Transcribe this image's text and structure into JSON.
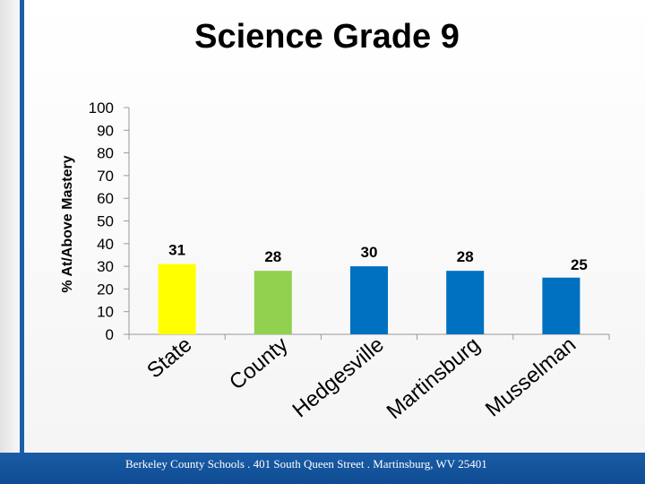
{
  "chart_data": {
    "type": "bar",
    "title": "Science Grade 9",
    "xlabel": "",
    "ylabel": "% At/Above Mastery",
    "ylim": [
      0,
      100
    ],
    "yticks": [
      0,
      10,
      20,
      30,
      40,
      50,
      60,
      70,
      80,
      90,
      100
    ],
    "grid": false,
    "legend": "none",
    "categories": [
      "State",
      "County",
      "Hedgesville",
      "Martinsburg",
      "Musselman"
    ],
    "values": [
      31,
      28,
      30,
      28,
      25
    ],
    "data_labels": [
      "31",
      "28",
      "30",
      "28",
      "25"
    ],
    "colors": [
      "#ffff00",
      "#92d050",
      "#0070c0",
      "#0070c0",
      "#0070c0"
    ]
  },
  "footer": {
    "text": "Berkeley County Schools . 401 South Queen Street . Martinsburg, WV 25401",
    "background": "#1a5ca6"
  },
  "accent_rule_color": "#1c5ea8"
}
